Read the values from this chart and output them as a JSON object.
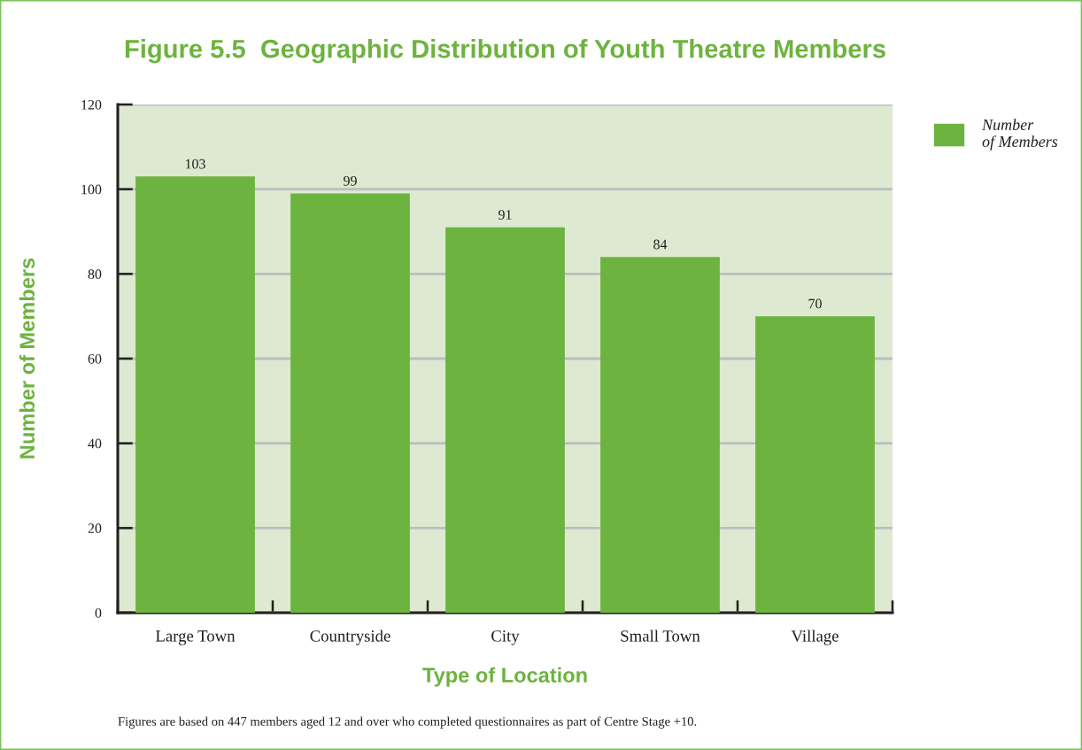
{
  "chart_data": {
    "type": "bar",
    "title": "Figure 5.5  Geographic Distribution of Youth Theatre Members",
    "xlabel": "Type of Location",
    "ylabel": "Number of Members",
    "categories": [
      "Large Town",
      "Countryside",
      "City",
      "Small Town",
      "Village"
    ],
    "series": [
      {
        "name": "Number of Members",
        "color": "#6db33f",
        "values": [
          103,
          99,
          91,
          84,
          70
        ]
      }
    ],
    "ylim": [
      0,
      120
    ],
    "yticks": [
      0,
      20,
      40,
      60,
      80,
      100,
      120
    ],
    "grid": "y",
    "legend": "top right",
    "data_labels": true,
    "annotations": [
      "Figures are based on 447 members aged 12 and over who completed questionnaires as part of Centre Stage +10."
    ]
  }
}
